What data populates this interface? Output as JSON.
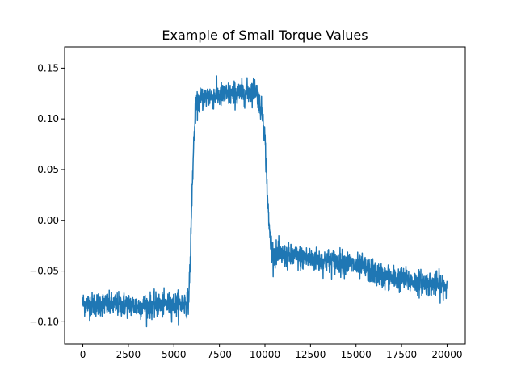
{
  "chart_data": {
    "type": "line",
    "title": "Example of Small Torque Values",
    "xlabel": "",
    "ylabel": "",
    "xlim": [
      -1000,
      21000
    ],
    "ylim": [
      -0.122,
      0.171
    ],
    "x_ticks": [
      0,
      2500,
      5000,
      7500,
      10000,
      12500,
      15000,
      17500,
      20000
    ],
    "x_tick_labels": [
      "0",
      "2500",
      "5000",
      "7500",
      "10000",
      "12500",
      "15000",
      "17500",
      "20000"
    ],
    "y_ticks": [
      -0.1,
      -0.05,
      0.0,
      0.05,
      0.1,
      0.15
    ],
    "y_tick_labels": [
      "−0.10",
      "−0.05",
      "0.00",
      "0.05",
      "0.10",
      "0.15"
    ],
    "grid": false,
    "legend": "none",
    "series": [
      {
        "color": "#1f77b4",
        "noise_std": 0.006,
        "x": [
          0,
          500,
          1000,
          1500,
          2000,
          2500,
          3000,
          3500,
          4000,
          4500,
          5000,
          5500,
          5800,
          5900,
          6000,
          6100,
          6200,
          6400,
          6700,
          7000,
          7500,
          8000,
          8500,
          9000,
          9300,
          9500,
          9700,
          9900,
          10000,
          10100,
          10200,
          10300,
          10400,
          10500,
          11000,
          11500,
          12000,
          12500,
          13000,
          13500,
          14000,
          14500,
          15000,
          15500,
          16000,
          16500,
          17000,
          17500,
          18000,
          18500,
          19000,
          19500,
          20000
        ],
        "y": [
          -0.082,
          -0.083,
          -0.082,
          -0.084,
          -0.083,
          -0.083,
          -0.085,
          -0.084,
          -0.084,
          -0.083,
          -0.083,
          -0.082,
          -0.08,
          -0.04,
          0.03,
          0.08,
          0.11,
          0.118,
          0.122,
          0.122,
          0.123,
          0.124,
          0.125,
          0.126,
          0.128,
          0.13,
          0.115,
          0.102,
          0.08,
          0.04,
          0.0,
          -0.02,
          -0.03,
          -0.033,
          -0.035,
          -0.036,
          -0.037,
          -0.038,
          -0.04,
          -0.04,
          -0.041,
          -0.042,
          -0.045,
          -0.047,
          -0.052,
          -0.055,
          -0.057,
          -0.058,
          -0.06,
          -0.061,
          -0.062,
          -0.063,
          -0.065
        ]
      }
    ]
  }
}
